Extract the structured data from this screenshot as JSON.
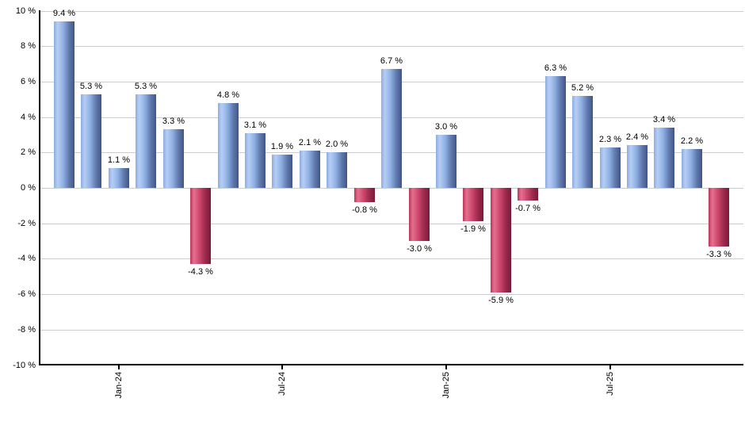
{
  "chart_data": {
    "type": "bar",
    "title": "",
    "xlabel": "",
    "ylabel": "",
    "ylim": [
      -10,
      10
    ],
    "grid": "horizontal",
    "legend": "none",
    "unit": "%",
    "values": [
      9.4,
      5.3,
      1.1,
      5.3,
      3.3,
      -4.3,
      4.8,
      3.1,
      1.9,
      2.1,
      2.0,
      -0.8,
      6.7,
      -3.0,
      3.0,
      -1.9,
      -5.9,
      -0.7,
      6.3,
      5.2,
      2.3,
      2.4,
      3.4,
      2.2,
      -3.3
    ],
    "bar_labels": [
      "9.4 %",
      "5.3 %",
      "1.1 %",
      "5.3 %",
      "3.3 %",
      "-4.3 %",
      "4.8 %",
      "3.1 %",
      "1.9 %",
      "2.1 %",
      "2.0 %",
      "-0.8 %",
      "6.7 %",
      "-3.0 %",
      "3.0 %",
      "-1.9 %",
      "-5.9 %",
      "-0.7 %",
      "6.3 %",
      "5.2 %",
      "2.3 %",
      "2.4 %",
      "3.4 %",
      "2.2 %",
      "-3.3 %"
    ],
    "x_ticks": [
      {
        "bar_index": 2,
        "label": "Jan-24"
      },
      {
        "bar_index": 8,
        "label": "Jul-24"
      },
      {
        "bar_index": 14,
        "label": "Jan-25"
      },
      {
        "bar_index": 20,
        "label": "Jul-25"
      }
    ],
    "y_ticks": [
      {
        "value": 10,
        "label": "10 %"
      },
      {
        "value": 8,
        "label": "8 %"
      },
      {
        "value": 6,
        "label": "6 %"
      },
      {
        "value": 4,
        "label": "4 %"
      },
      {
        "value": 2,
        "label": "2 %"
      },
      {
        "value": 0,
        "label": "0 %"
      },
      {
        "value": -2,
        "label": "-2 %"
      },
      {
        "value": -4,
        "label": "-4 %"
      },
      {
        "value": -6,
        "label": "-6 %"
      },
      {
        "value": -8,
        "label": "-8 %"
      },
      {
        "value": -10,
        "label": "-10 %"
      }
    ],
    "colors": {
      "positive_bar_gradient": [
        "#8cade0",
        "#b6cef5",
        "#8fb0e3",
        "#627cb0",
        "#415586"
      ],
      "negative_bar_gradient": [
        "#bd3459",
        "#e57090",
        "#cd476c",
        "#9e2b4e",
        "#7a1a38"
      ],
      "gridline": "#cccccc",
      "axis": "#000000",
      "text": "#000000",
      "background": "#ffffff"
    }
  }
}
